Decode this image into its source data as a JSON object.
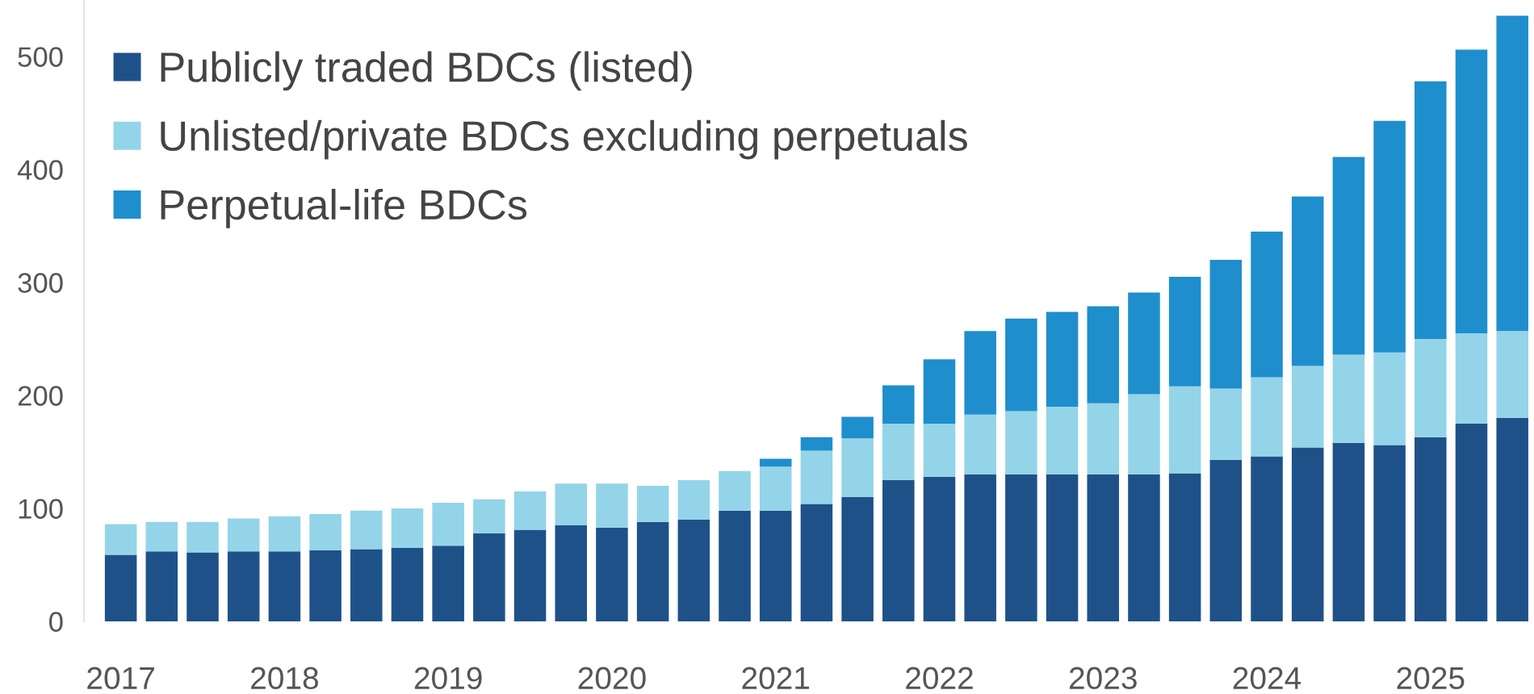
{
  "chart_data": {
    "type": "bar",
    "stacked": true,
    "legend": "top left",
    "categories": [
      "2017",
      null,
      null,
      null,
      "2018",
      null,
      null,
      null,
      "2019",
      null,
      null,
      null,
      "2020",
      null,
      null,
      null,
      "2021",
      null,
      null,
      null,
      "2022",
      null,
      null,
      null,
      "2023",
      null,
      null,
      null,
      "2024",
      null,
      null,
      null,
      "2025",
      null,
      null
    ],
    "series": [
      {
        "name": "Publicly traded BDCs (listed)",
        "color": "#1f5189",
        "values": [
          59,
          62,
          61,
          62,
          62,
          63,
          64,
          65,
          67,
          78,
          81,
          85,
          83,
          88,
          90,
          98,
          98,
          104,
          110,
          125,
          128,
          130,
          130,
          130,
          130,
          130,
          131,
          143,
          146,
          154,
          158,
          156,
          163,
          175,
          180
        ]
      },
      {
        "name": "Unlisted/private BDCs excluding perpetuals",
        "color": "#94d4e8",
        "values": [
          27,
          26,
          27,
          29,
          31,
          32,
          34,
          35,
          38,
          30,
          34,
          37,
          39,
          32,
          35,
          35,
          39,
          47,
          52,
          50,
          47,
          53,
          56,
          60,
          63,
          71,
          77,
          63,
          70,
          72,
          78,
          82,
          87,
          80,
          77
        ]
      },
      {
        "name": "Perpetual-life BDCs",
        "color": "#1f8ecd",
        "values": [
          null,
          null,
          null,
          null,
          null,
          null,
          null,
          null,
          null,
          null,
          null,
          null,
          null,
          null,
          null,
          null,
          7,
          12,
          19,
          34,
          57,
          74,
          82,
          84,
          86,
          90,
          97,
          114,
          129,
          150,
          175,
          205,
          228,
          251,
          279
        ]
      }
    ],
    "ylim": [
      0,
      550
    ],
    "yticks": [
      0,
      100,
      200,
      300,
      400,
      500
    ]
  }
}
